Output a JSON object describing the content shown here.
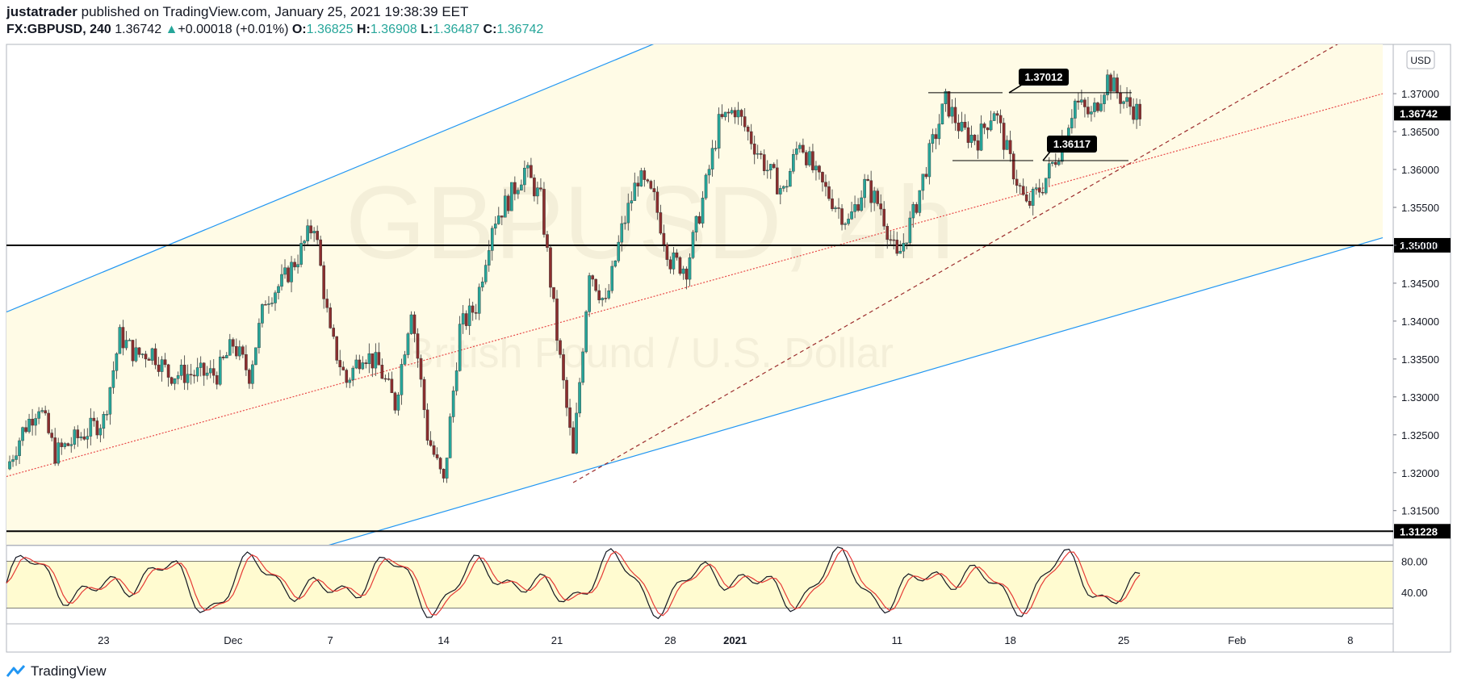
{
  "header": {
    "author": "justatrader",
    "published_text": "published on TradingView.com, January 25, 2021 19:38:39 EET",
    "symbol": "FX:GBPUSD, 240",
    "last": "1.36742",
    "change_arrow": "▲",
    "change": "+0.00018 (+0.01%)",
    "o_label": "O:",
    "o_value": "1.36825",
    "h_label": "H:",
    "h_value": "1.36908",
    "l_label": "L:",
    "l_value": "1.36487",
    "c_label": "C:",
    "c_value": "1.36742"
  },
  "watermark": {
    "symbol": "GBPUSD, 4h",
    "description": "British Pound / U.S. Dollar"
  },
  "currency_badge": "USD",
  "colors": {
    "up": "#26a69a",
    "down": "#8b2e2e",
    "channel_fill": "#fffbe6",
    "channel_line": "#2196f3",
    "mid_line": "#e84848",
    "support_line": "#9c2c2c",
    "osc_fill": "#fffbd0",
    "stoch_k": "#131722",
    "stoch_d": "#e53935"
  },
  "chart_data": {
    "type": "candlestick",
    "symbol": "FX:GBPUSD",
    "timeframe": "240",
    "ylim": [
      1.3105,
      1.3765
    ],
    "price_ticks": [
      "1.31500",
      "1.32000",
      "1.32500",
      "1.33000",
      "1.33500",
      "1.34000",
      "1.34500",
      "1.35000",
      "1.35500",
      "1.36000",
      "1.36500",
      "1.37000"
    ],
    "date_ticks": [
      {
        "label": "23",
        "x": "2020-11-23"
      },
      {
        "label": "Dec",
        "x": "2020-12-01"
      },
      {
        "label": "7",
        "x": "2020-12-07"
      },
      {
        "label": "14",
        "x": "2020-12-14"
      },
      {
        "label": "21",
        "x": "2020-12-21"
      },
      {
        "label": "28",
        "x": "2020-12-28"
      },
      {
        "label": "2021",
        "x": "2021-01-01",
        "bold": true
      },
      {
        "label": "11",
        "x": "2021-01-11"
      },
      {
        "label": "18",
        "x": "2021-01-18"
      },
      {
        "label": "25",
        "x": "2021-01-25"
      },
      {
        "label": "Feb",
        "x": "2021-02-01"
      },
      {
        "label": "8",
        "x": "2021-02-08"
      }
    ],
    "horizontal_levels": [
      {
        "value": 1.35,
        "label": "1.35000"
      },
      {
        "value": 1.31228,
        "label": "1.31228"
      }
    ],
    "last_price_label": "1.36742",
    "last_price": 1.36742,
    "annotations": [
      {
        "text": "1.37012",
        "value": 1.37012
      },
      {
        "text": "1.36117",
        "value": 1.36117
      }
    ],
    "channel": {
      "upper": [
        {
          "x": "2020-11-17",
          "y": 1.3412
        },
        {
          "x": "2021-01-01",
          "y": 1.381
        }
      ],
      "lower": [
        {
          "x": "2020-12-07",
          "y": 1.3105
        },
        {
          "x": "2021-02-10",
          "y": 1.351
        }
      ],
      "middle": [
        {
          "x": "2020-11-17",
          "y": 1.3195
        },
        {
          "x": "2021-02-10",
          "y": 1.37
        }
      ]
    },
    "support_line": [
      {
        "x": "2020-12-22",
        "y": 1.3187
      },
      {
        "x": "2021-02-08",
        "y": 1.3775
      }
    ],
    "oscillator": {
      "name": "Stochastic",
      "ylim": [
        0,
        100
      ],
      "levels": [
        80,
        20
      ],
      "tick_labels": [
        "80.00",
        "40.00"
      ],
      "tick_values": [
        80,
        40
      ]
    },
    "series_points": [
      [
        "2020-11-17",
        1.3205
      ],
      [
        "2020-11-18",
        1.3255
      ],
      [
        "2020-11-19",
        1.329
      ],
      [
        "2020-11-20",
        1.3225
      ],
      [
        "2020-11-23",
        1.327
      ],
      [
        "2020-11-24",
        1.338
      ],
      [
        "2020-11-25",
        1.3355
      ],
      [
        "2020-11-26",
        1.336
      ],
      [
        "2020-11-27",
        1.333
      ],
      [
        "2020-11-30",
        1.333
      ],
      [
        "2020-12-01",
        1.337
      ],
      [
        "2020-12-02",
        1.333
      ],
      [
        "2020-12-03",
        1.343
      ],
      [
        "2020-12-04",
        1.345
      ],
      [
        "2020-12-05",
        1.3485
      ],
      [
        "2020-12-06",
        1.353
      ],
      [
        "2020-12-07",
        1.338
      ],
      [
        "2020-12-08",
        1.332
      ],
      [
        "2020-12-09",
        1.336
      ],
      [
        "2020-12-10",
        1.334
      ],
      [
        "2020-12-11",
        1.329
      ],
      [
        "2020-12-12",
        1.342
      ],
      [
        "2020-12-13",
        1.325
      ],
      [
        "2020-12-14",
        1.3185
      ],
      [
        "2020-12-15",
        1.339
      ],
      [
        "2020-12-16",
        1.342
      ],
      [
        "2020-12-17",
        1.353
      ],
      [
        "2020-12-18",
        1.356
      ],
      [
        "2020-12-19",
        1.36
      ],
      [
        "2020-12-20",
        1.356
      ],
      [
        "2020-12-21",
        1.338
      ],
      [
        "2020-12-22",
        1.322
      ],
      [
        "2020-12-23",
        1.347
      ],
      [
        "2020-12-24",
        1.342
      ],
      [
        "2020-12-25",
        1.352
      ],
      [
        "2020-12-26",
        1.359
      ],
      [
        "2020-12-27",
        1.356
      ],
      [
        "2020-12-28",
        1.348
      ],
      [
        "2020-12-29",
        1.347
      ],
      [
        "2020-12-30",
        1.356
      ],
      [
        "2020-12-31",
        1.366
      ],
      [
        "2021-01-01",
        1.368
      ],
      [
        "2021-01-02",
        1.364
      ],
      [
        "2021-01-03",
        1.36
      ],
      [
        "2021-01-04",
        1.357
      ],
      [
        "2021-01-05",
        1.364
      ],
      [
        "2021-01-06",
        1.359
      ],
      [
        "2021-01-07",
        1.356
      ],
      [
        "2021-01-08",
        1.353
      ],
      [
        "2021-01-09",
        1.358
      ],
      [
        "2021-01-10",
        1.355
      ],
      [
        "2021-01-11",
        1.348
      ],
      [
        "2021-01-12",
        1.354
      ],
      [
        "2021-01-13",
        1.362
      ],
      [
        "2021-01-14",
        1.369
      ],
      [
        "2021-01-15",
        1.365
      ],
      [
        "2021-01-16",
        1.364
      ],
      [
        "2021-01-17",
        1.368
      ],
      [
        "2021-01-18",
        1.361
      ],
      [
        "2021-01-19",
        1.355
      ],
      [
        "2021-01-20",
        1.358
      ],
      [
        "2021-01-21",
        1.3625
      ],
      [
        "2021-01-22",
        1.369
      ],
      [
        "2021-01-23",
        1.367
      ],
      [
        "2021-01-24",
        1.372
      ],
      [
        "2021-01-25",
        1.369
      ],
      [
        "2021-01-26",
        1.3674
      ]
    ]
  },
  "footer": {
    "brand": "TradingView"
  }
}
